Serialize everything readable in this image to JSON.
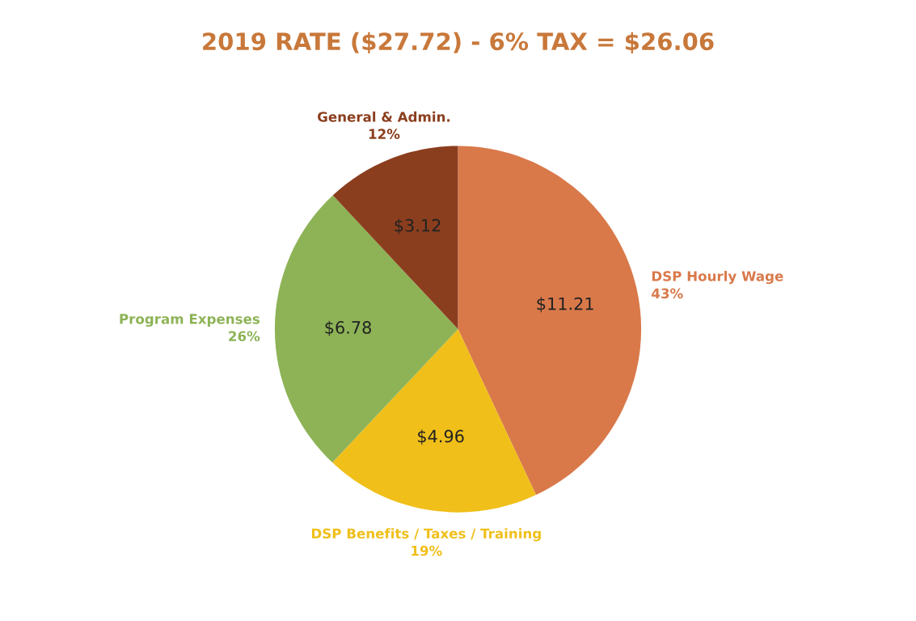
{
  "chart_data": {
    "type": "pie",
    "title": "2019 RATE ($27.72) - 6% TAX = $26.06",
    "categories": [
      "DSP Hourly Wage",
      "DSP Benefits / Taxes / Training",
      "Program Expenses",
      "General & Admin."
    ],
    "values": [
      11.21,
      4.96,
      6.78,
      3.12
    ],
    "colors": [
      "#d9794a",
      "#f0bf1a",
      "#8db356",
      "#8b3e1e"
    ],
    "value_labels": [
      "$11.21",
      "$4.96",
      "$6.78",
      "$3.12"
    ],
    "annotations": [
      "43%",
      "19%",
      "26%",
      "12%"
    ],
    "legend": false
  }
}
